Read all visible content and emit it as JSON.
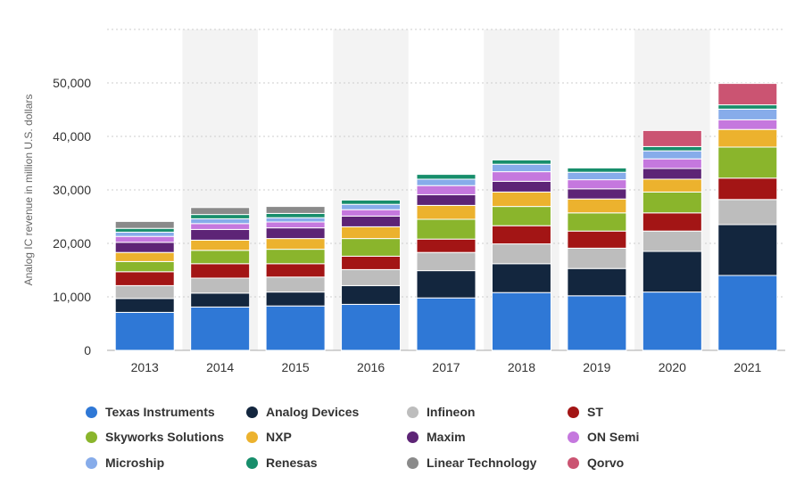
{
  "chart_data": {
    "type": "bar",
    "stacked": true,
    "ylabel": "Analog IC revenue in million U.S. dollars",
    "categories": [
      "2013",
      "2014",
      "2015",
      "2016",
      "2017",
      "2018",
      "2019",
      "2020",
      "2021"
    ],
    "ylim": [
      0,
      60000
    ],
    "yticks": [
      0,
      10000,
      20000,
      30000,
      40000,
      50000
    ],
    "ytick_labels": [
      "0",
      "10,000",
      "20,000",
      "30,000",
      "40,000",
      "50,000"
    ],
    "grid": true,
    "legend_position": "bottom",
    "series": [
      {
        "name": "Texas Instruments",
        "color": "#2f78d6",
        "values": [
          7100,
          8100,
          8300,
          8600,
          9800,
          10800,
          10200,
          10900,
          14000
        ]
      },
      {
        "name": "Analog Devices",
        "color": "#13263e",
        "values": [
          2600,
          2600,
          2600,
          3500,
          5100,
          5400,
          5100,
          7600,
          9500
        ]
      },
      {
        "name": "Infineon",
        "color": "#bdbdbd",
        "values": [
          2400,
          2800,
          2800,
          3000,
          3400,
          3700,
          3800,
          3800,
          4700
        ]
      },
      {
        "name": "ST",
        "color": "#a31515",
        "values": [
          2600,
          2700,
          2500,
          2500,
          2500,
          3400,
          3200,
          3400,
          4000
        ]
      },
      {
        "name": "Skyworks Solutions",
        "color": "#8ab52c",
        "values": [
          1900,
          2500,
          2700,
          3300,
          3700,
          3600,
          3400,
          3900,
          5800
        ]
      },
      {
        "name": "NXP",
        "color": "#ecb22e",
        "values": [
          1700,
          1900,
          2000,
          2200,
          2600,
          2700,
          2600,
          2400,
          3300
        ]
      },
      {
        "name": "Maxim",
        "color": "#5d2476",
        "values": [
          1900,
          2000,
          2000,
          2000,
          2000,
          2000,
          1900,
          2000,
          0
        ]
      },
      {
        "name": "ON Semi",
        "color": "#c578de",
        "values": [
          1100,
          1100,
          1100,
          1200,
          1700,
          1800,
          1700,
          1800,
          1800
        ]
      },
      {
        "name": "Microship",
        "color": "#87acea",
        "values": [
          800,
          900,
          800,
          1000,
          1200,
          1400,
          1400,
          1500,
          2000
        ]
      },
      {
        "name": "Renesas",
        "color": "#178e6b",
        "values": [
          700,
          800,
          800,
          800,
          900,
          800,
          800,
          800,
          800
        ]
      },
      {
        "name": "Linear Technology",
        "color": "#8a8a8a",
        "values": [
          1300,
          1300,
          1300,
          0,
          0,
          0,
          0,
          0,
          0
        ]
      },
      {
        "name": "Qorvo",
        "color": "#cb5472",
        "values": [
          0,
          0,
          0,
          0,
          0,
          0,
          0,
          3000,
          4000
        ]
      }
    ],
    "colors": {
      "gridline": "#cccccc",
      "band": "#f3f3f3",
      "axis": "#aaaaaa"
    }
  }
}
